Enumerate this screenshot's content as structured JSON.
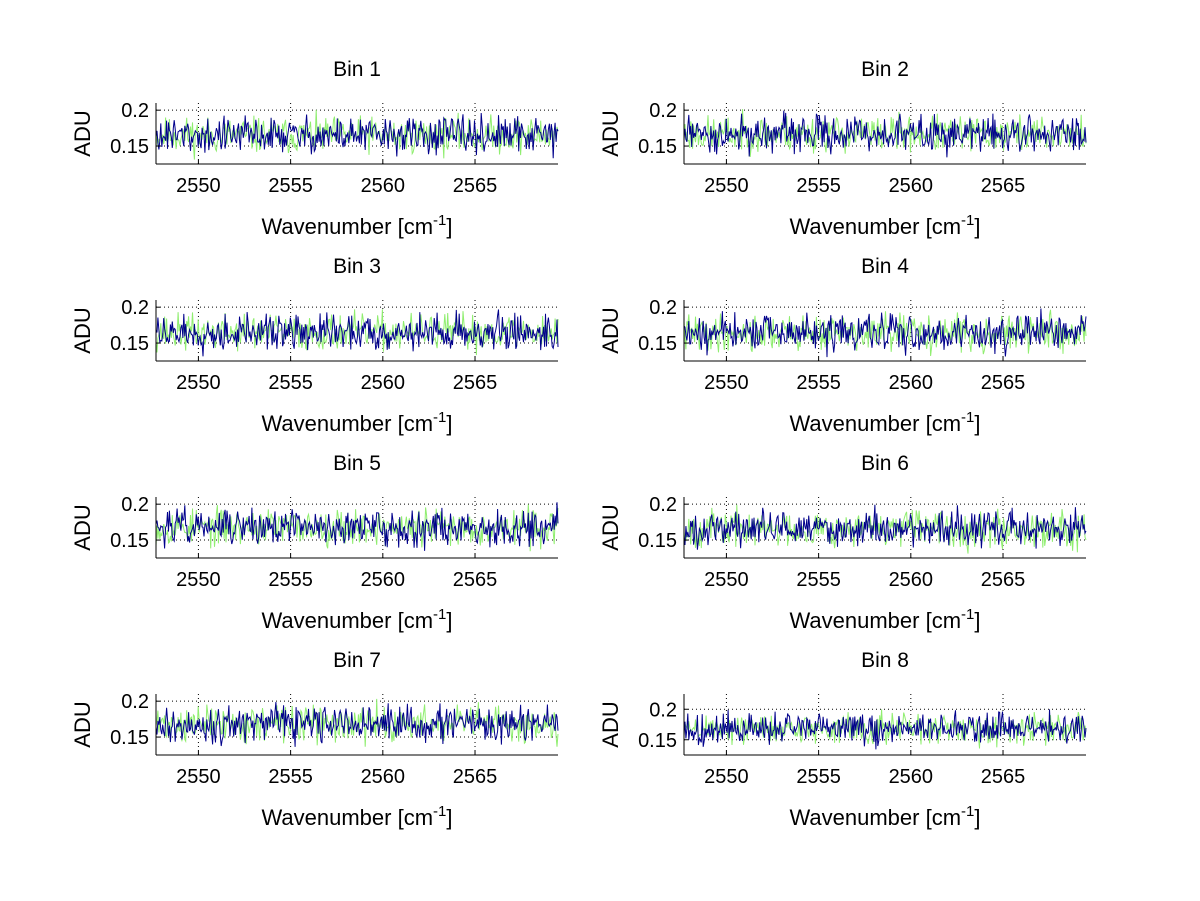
{
  "colors": {
    "series_a": "#00008b",
    "series_b": "#90ee70",
    "grid": "#000000",
    "background": "#ffffff"
  },
  "chart_data": [
    {
      "type": "line",
      "title": "Bin 1",
      "xlabel": "Wavenumber [cm",
      "xlabel_sup": "-1",
      "xlabel_close": "]",
      "ylabel": "ADU",
      "xlim": [
        2547.7,
        2569.5
      ],
      "ylim": [
        0.125,
        0.21
      ],
      "xticks": [
        "2550",
        "2555",
        "2560",
        "2565"
      ],
      "yticks": [
        "0.15",
        "0.2"
      ],
      "grid": true,
      "series_mean": 0.165,
      "series_amplitude": 0.045,
      "seed": 11
    },
    {
      "type": "line",
      "title": "Bin 2",
      "xlabel": "Wavenumber [cm",
      "xlabel_sup": "-1",
      "xlabel_close": "]",
      "ylabel": "ADU",
      "xlim": [
        2547.7,
        2569.5
      ],
      "ylim": [
        0.125,
        0.21
      ],
      "xticks": [
        "2550",
        "2555",
        "2560",
        "2565"
      ],
      "yticks": [
        "0.15",
        "0.2"
      ],
      "grid": true,
      "series_mean": 0.167,
      "series_amplitude": 0.045,
      "seed": 23
    },
    {
      "type": "line",
      "title": "Bin 3",
      "xlabel": "Wavenumber [cm",
      "xlabel_sup": "-1",
      "xlabel_close": "]",
      "ylabel": "ADU",
      "xlim": [
        2547.7,
        2569.5
      ],
      "ylim": [
        0.125,
        0.21
      ],
      "xticks": [
        "2550",
        "2555",
        "2560",
        "2565"
      ],
      "yticks": [
        "0.15",
        "0.2"
      ],
      "grid": true,
      "series_mean": 0.165,
      "series_amplitude": 0.045,
      "seed": 37
    },
    {
      "type": "line",
      "title": "Bin 4",
      "xlabel": "Wavenumber [cm",
      "xlabel_sup": "-1",
      "xlabel_close": "]",
      "ylabel": "ADU",
      "xlim": [
        2547.7,
        2569.5
      ],
      "ylim": [
        0.125,
        0.21
      ],
      "xticks": [
        "2550",
        "2555",
        "2560",
        "2565"
      ],
      "yticks": [
        "0.15",
        "0.2"
      ],
      "grid": true,
      "series_mean": 0.164,
      "series_amplitude": 0.045,
      "seed": 41
    },
    {
      "type": "line",
      "title": "Bin 5",
      "xlabel": "Wavenumber [cm",
      "xlabel_sup": "-1",
      "xlabel_close": "]",
      "ylabel": "ADU",
      "xlim": [
        2547.7,
        2569.5
      ],
      "ylim": [
        0.125,
        0.21
      ],
      "xticks": [
        "2550",
        "2555",
        "2560",
        "2565"
      ],
      "yticks": [
        "0.15",
        "0.2"
      ],
      "grid": true,
      "series_mean": 0.168,
      "series_amplitude": 0.045,
      "seed": 53
    },
    {
      "type": "line",
      "title": "Bin 6",
      "xlabel": "Wavenumber [cm",
      "xlabel_sup": "-1",
      "xlabel_close": "]",
      "ylabel": "ADU",
      "xlim": [
        2547.7,
        2569.5
      ],
      "ylim": [
        0.125,
        0.21
      ],
      "xticks": [
        "2550",
        "2555",
        "2560",
        "2565"
      ],
      "yticks": [
        "0.15",
        "0.2"
      ],
      "grid": true,
      "series_mean": 0.166,
      "series_amplitude": 0.045,
      "seed": 67
    },
    {
      "type": "line",
      "title": "Bin 7",
      "xlabel": "Wavenumber [cm",
      "xlabel_sup": "-1",
      "xlabel_close": "]",
      "ylabel": "ADU",
      "xlim": [
        2547.7,
        2569.5
      ],
      "ylim": [
        0.125,
        0.21
      ],
      "xticks": [
        "2550",
        "2555",
        "2560",
        "2565"
      ],
      "yticks": [
        "0.15",
        "0.2"
      ],
      "grid": true,
      "series_mean": 0.168,
      "series_amplitude": 0.045,
      "seed": 71
    },
    {
      "type": "line",
      "title": "Bin 8",
      "xlabel": "Wavenumber [cm",
      "xlabel_sup": "-1",
      "xlabel_close": "]",
      "ylabel": "ADU",
      "xlim": [
        2547.7,
        2569.5
      ],
      "ylim": [
        0.125,
        0.225
      ],
      "xticks": [
        "2550",
        "2555",
        "2560",
        "2565"
      ],
      "yticks": [
        "0.15",
        "0.2"
      ],
      "grid": true,
      "series_mean": 0.168,
      "series_amplitude": 0.045,
      "seed": 89
    }
  ]
}
